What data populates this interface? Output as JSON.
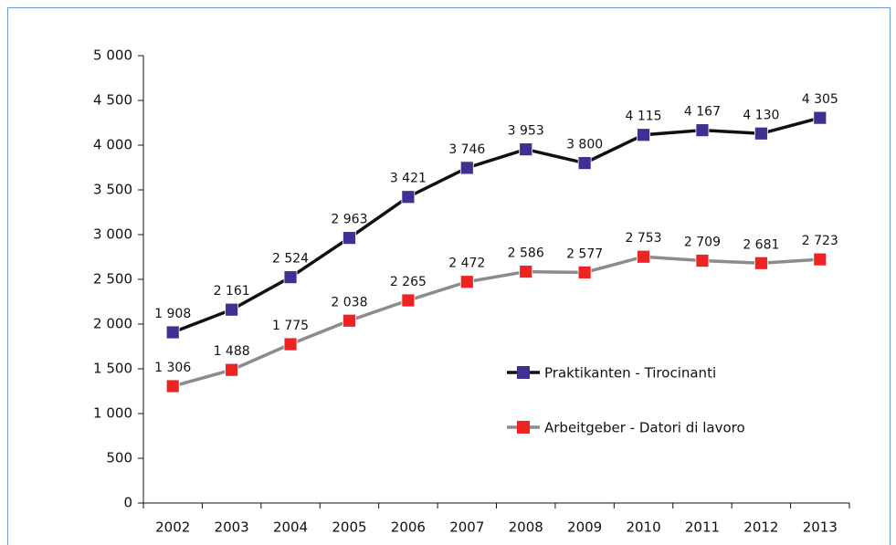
{
  "chart_data": {
    "type": "line",
    "categories": [
      "2002",
      "2003",
      "2004",
      "2005",
      "2006",
      "2007",
      "2008",
      "2009",
      "2010",
      "2011",
      "2012",
      "2013"
    ],
    "series": [
      {
        "name": "Praktikanten - Tirocinanti",
        "color": "#111111",
        "marker_color": "#3d3194",
        "values": [
          1908,
          2161,
          2524,
          2963,
          3421,
          3746,
          3953,
          3800,
          4115,
          4167,
          4130,
          4305
        ],
        "value_labels": [
          "1 908",
          "2 161",
          "2 524",
          "2 963",
          "3 421",
          "3 746",
          "3 953",
          "3 800",
          "4 115",
          "4 167",
          "4 130",
          "4 305"
        ]
      },
      {
        "name": "Arbeitgeber - Datori di lavoro",
        "color": "#8c8c8c",
        "marker_color": "#ee2424",
        "values": [
          1306,
          1488,
          1775,
          2038,
          2265,
          2472,
          2586,
          2577,
          2753,
          2709,
          2681,
          2723
        ],
        "value_labels": [
          "1 306",
          "1 488",
          "1 775",
          "2 038",
          "2 265",
          "2 472",
          "2 586",
          "2 577",
          "2 753",
          "2 709",
          "2 681",
          "2 723"
        ]
      }
    ],
    "ylim": [
      0,
      5000
    ],
    "yticks": [
      0,
      500,
      {
        "value": 1000,
        "label": "1 000"
      },
      {
        "value": 1500,
        "label": "1 500"
      },
      {
        "value": 2000,
        "label": "2 000"
      },
      {
        "value": 2500,
        "label": "2 500"
      },
      {
        "value": 3000,
        "label": "3 000"
      },
      {
        "value": 3500,
        "label": "3 500"
      },
      {
        "value": 4000,
        "label": "4 000"
      },
      {
        "value": 4500,
        "label": "4 500"
      },
      {
        "value": 5000,
        "label": "5 000"
      }
    ],
    "grid": false,
    "legend": "right"
  }
}
